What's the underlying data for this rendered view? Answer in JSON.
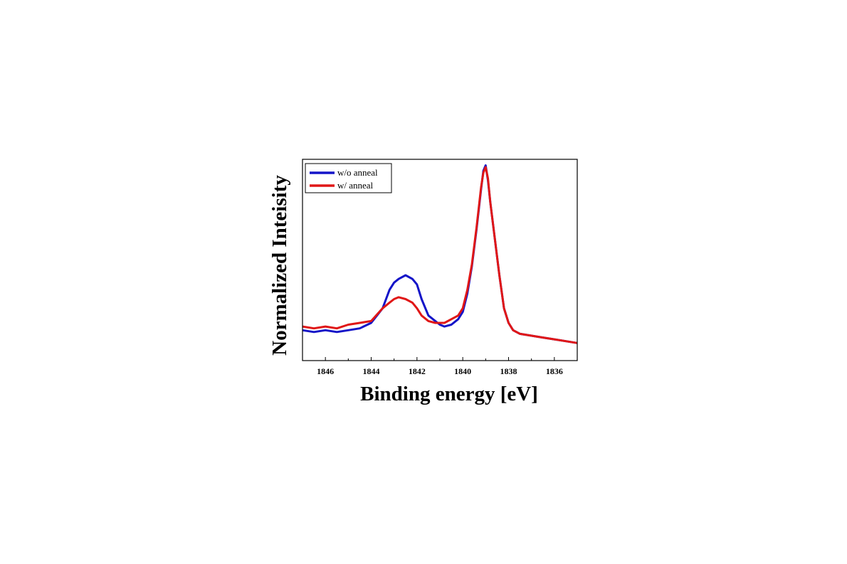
{
  "chart_data": {
    "type": "line",
    "xlabel": "Binding energy [eV]",
    "ylabel": "Normalized Inteisity",
    "xlim": [
      1847.0,
      1835.0
    ],
    "ylim": [
      0.0,
      1.0
    ],
    "x_reversed": true,
    "y_tick_labels": false,
    "x_ticks": [
      1846,
      1844,
      1842,
      1840,
      1838,
      1836
    ],
    "x_tick_labels": [
      "1846",
      "1844",
      "1842",
      "1840",
      "1838",
      "1836"
    ],
    "legend_position": "top-left",
    "series": [
      {
        "name": "w/o anneal",
        "color": "#1414c8",
        "x": [
          1847.0,
          1846.5,
          1846.0,
          1845.5,
          1845.0,
          1844.5,
          1844.0,
          1843.5,
          1843.2,
          1843.0,
          1842.8,
          1842.5,
          1842.2,
          1842.0,
          1841.8,
          1841.5,
          1841.2,
          1841.0,
          1840.8,
          1840.5,
          1840.2,
          1840.0,
          1839.8,
          1839.6,
          1839.4,
          1839.2,
          1839.1,
          1839.0,
          1838.9,
          1838.8,
          1838.6,
          1838.4,
          1838.2,
          1838.0,
          1837.8,
          1837.5,
          1837.0,
          1836.5,
          1836.0,
          1835.5,
          1835.0
        ],
        "y": [
          0.1,
          0.09,
          0.1,
          0.09,
          0.1,
          0.11,
          0.14,
          0.22,
          0.32,
          0.36,
          0.38,
          0.4,
          0.38,
          0.35,
          0.27,
          0.18,
          0.15,
          0.13,
          0.12,
          0.13,
          0.16,
          0.2,
          0.3,
          0.45,
          0.65,
          0.87,
          0.97,
          1.0,
          0.92,
          0.8,
          0.6,
          0.4,
          0.22,
          0.14,
          0.1,
          0.08,
          0.07,
          0.06,
          0.05,
          0.04,
          0.03
        ]
      },
      {
        "name": "w/ anneal",
        "color": "#e01616",
        "x": [
          1847.0,
          1846.5,
          1846.0,
          1845.5,
          1845.0,
          1844.5,
          1844.0,
          1843.5,
          1843.2,
          1843.0,
          1842.8,
          1842.5,
          1842.2,
          1842.0,
          1841.8,
          1841.5,
          1841.2,
          1841.0,
          1840.8,
          1840.5,
          1840.2,
          1840.0,
          1839.8,
          1839.6,
          1839.4,
          1839.2,
          1839.1,
          1839.0,
          1838.9,
          1838.8,
          1838.6,
          1838.4,
          1838.2,
          1838.0,
          1837.8,
          1837.5,
          1837.0,
          1836.5,
          1836.0,
          1835.5,
          1835.0
        ],
        "y": [
          0.12,
          0.11,
          0.12,
          0.11,
          0.13,
          0.14,
          0.15,
          0.22,
          0.25,
          0.27,
          0.28,
          0.27,
          0.25,
          0.22,
          0.18,
          0.15,
          0.14,
          0.14,
          0.14,
          0.16,
          0.18,
          0.22,
          0.32,
          0.46,
          0.66,
          0.88,
          0.96,
          0.99,
          0.93,
          0.8,
          0.6,
          0.4,
          0.22,
          0.14,
          0.1,
          0.08,
          0.07,
          0.06,
          0.05,
          0.04,
          0.03
        ]
      }
    ]
  }
}
